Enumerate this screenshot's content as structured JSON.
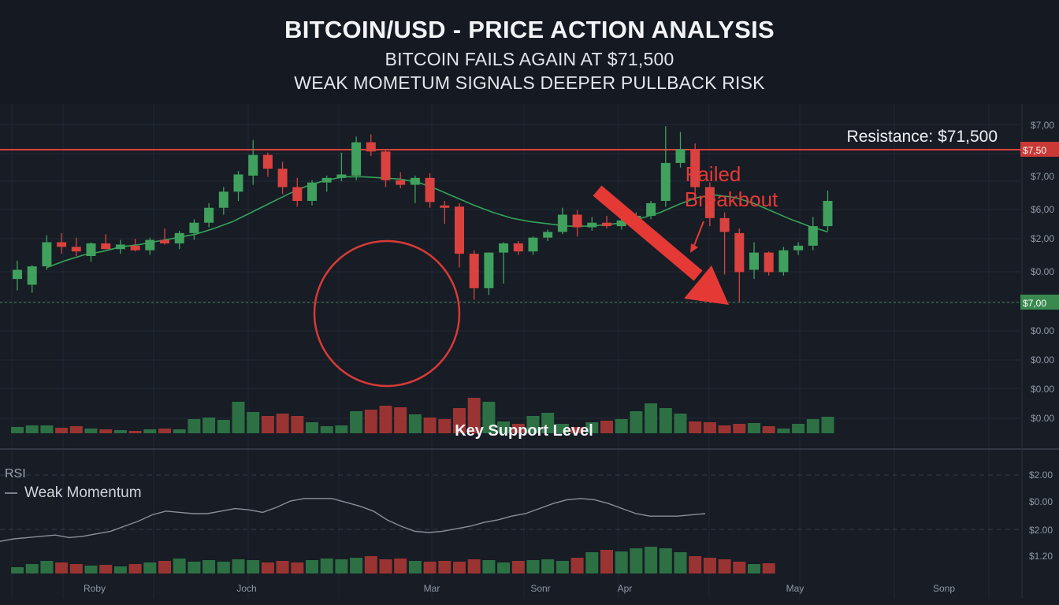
{
  "header": {
    "title": "BITCOIN/USD - PRICE ACTION ANALYSIS",
    "subtitle_1": "BITCOIN FAILS AGAIN AT $71,500",
    "subtitle_2": "WEAK MOMETUM SIGNALS DEEPER PULLBACK RISK"
  },
  "annotations": {
    "resistance": "Resistance: $71,500",
    "failed_breakout_1": "Failed",
    "failed_breakout_2": "Breakbout",
    "support": "Key Support Level",
    "rsi_label": "RSI",
    "rsi_legend": "Weak Momentum",
    "resistance_tag": "$7,50",
    "support_tag": "$7,00"
  },
  "colors": {
    "bull": "#3fa15d",
    "bear": "#d9423f",
    "resistance_line": "#d6423c",
    "ma_line": "#34a45a",
    "annotation_red": "#e53935",
    "support_tag_bg": "#3a8a50",
    "resistance_tag_bg": "#c93a36"
  },
  "chart_data": {
    "type": "candlestick",
    "price_axis_ticks": [
      "$7,00",
      "$7,00",
      "$6,00",
      "$2,00",
      "$0.00",
      "$0.00",
      "$0.00",
      "$0.00",
      "$0.00"
    ],
    "rsi_axis_ticks": [
      "$2.00",
      "$0.00",
      "$2.00",
      "$1.20"
    ],
    "x_labels": [
      "Roby",
      "Joch",
      "Mar",
      "Sonr",
      "Apr",
      "May",
      "Sonp"
    ],
    "resistance": 71.5,
    "support": 63.5,
    "price_range": [
      50,
      74
    ],
    "candles": [
      {
        "o": 60.0,
        "h": 61.6,
        "l": 59.0,
        "c": 60.8
      },
      {
        "o": 59.5,
        "h": 61.2,
        "l": 58.8,
        "c": 61.1
      },
      {
        "o": 61.1,
        "h": 63.8,
        "l": 60.8,
        "c": 63.2
      },
      {
        "o": 63.2,
        "h": 64.0,
        "l": 62.2,
        "c": 62.8
      },
      {
        "o": 62.8,
        "h": 63.6,
        "l": 62.0,
        "c": 62.4
      },
      {
        "o": 62.0,
        "h": 63.2,
        "l": 61.5,
        "c": 63.1
      },
      {
        "o": 63.1,
        "h": 63.9,
        "l": 62.6,
        "c": 62.6
      },
      {
        "o": 62.6,
        "h": 63.4,
        "l": 62.2,
        "c": 63.0
      },
      {
        "o": 62.9,
        "h": 63.5,
        "l": 62.4,
        "c": 62.5
      },
      {
        "o": 62.5,
        "h": 63.6,
        "l": 62.1,
        "c": 63.4
      },
      {
        "o": 63.4,
        "h": 64.4,
        "l": 63.0,
        "c": 63.1
      },
      {
        "o": 63.1,
        "h": 64.2,
        "l": 62.6,
        "c": 64.0
      },
      {
        "o": 64.0,
        "h": 65.2,
        "l": 63.4,
        "c": 64.9
      },
      {
        "o": 64.9,
        "h": 66.6,
        "l": 64.5,
        "c": 66.2
      },
      {
        "o": 66.2,
        "h": 68.0,
        "l": 65.6,
        "c": 67.6
      },
      {
        "o": 67.6,
        "h": 69.4,
        "l": 66.8,
        "c": 69.1
      },
      {
        "o": 69.0,
        "h": 72.1,
        "l": 68.2,
        "c": 70.8
      },
      {
        "o": 70.8,
        "h": 71.0,
        "l": 68.9,
        "c": 69.6
      },
      {
        "o": 69.6,
        "h": 70.2,
        "l": 67.4,
        "c": 68.0
      },
      {
        "o": 68.0,
        "h": 68.8,
        "l": 66.3,
        "c": 66.8
      },
      {
        "o": 66.8,
        "h": 68.6,
        "l": 66.4,
        "c": 68.4
      },
      {
        "o": 68.4,
        "h": 69.0,
        "l": 67.6,
        "c": 68.8
      },
      {
        "o": 68.8,
        "h": 71.0,
        "l": 68.5,
        "c": 69.1
      },
      {
        "o": 69.0,
        "h": 72.4,
        "l": 68.6,
        "c": 71.9
      },
      {
        "o": 71.9,
        "h": 72.6,
        "l": 70.7,
        "c": 71.1
      },
      {
        "o": 71.1,
        "h": 71.3,
        "l": 68.0,
        "c": 68.6
      },
      {
        "o": 68.6,
        "h": 69.3,
        "l": 67.9,
        "c": 68.2
      },
      {
        "o": 68.2,
        "h": 69.0,
        "l": 66.6,
        "c": 68.8
      },
      {
        "o": 68.8,
        "h": 69.2,
        "l": 66.2,
        "c": 66.7
      },
      {
        "o": 66.4,
        "h": 66.8,
        "l": 64.8,
        "c": 66.2
      },
      {
        "o": 66.3,
        "h": 66.6,
        "l": 61.0,
        "c": 62.2
      },
      {
        "o": 62.2,
        "h": 62.5,
        "l": 58.2,
        "c": 59.2
      },
      {
        "o": 59.2,
        "h": 62.3,
        "l": 58.6,
        "c": 62.3
      },
      {
        "o": 62.3,
        "h": 63.2,
        "l": 59.6,
        "c": 63.1
      },
      {
        "o": 63.1,
        "h": 63.3,
        "l": 62.1,
        "c": 62.4
      },
      {
        "o": 62.4,
        "h": 63.7,
        "l": 62.1,
        "c": 63.6
      },
      {
        "o": 63.6,
        "h": 64.3,
        "l": 63.3,
        "c": 64.1
      },
      {
        "o": 64.1,
        "h": 66.2,
        "l": 63.9,
        "c": 65.6
      },
      {
        "o": 65.6,
        "h": 66.0,
        "l": 63.7,
        "c": 64.5
      },
      {
        "o": 64.5,
        "h": 65.4,
        "l": 64.2,
        "c": 64.9
      },
      {
        "o": 64.9,
        "h": 65.5,
        "l": 64.4,
        "c": 64.6
      },
      {
        "o": 64.6,
        "h": 65.6,
        "l": 64.3,
        "c": 65.1
      },
      {
        "o": 65.1,
        "h": 65.8,
        "l": 64.8,
        "c": 65.5
      },
      {
        "o": 65.5,
        "h": 66.8,
        "l": 65.2,
        "c": 66.6
      },
      {
        "o": 66.8,
        "h": 73.3,
        "l": 66.3,
        "c": 70.1
      },
      {
        "o": 70.1,
        "h": 72.8,
        "l": 69.7,
        "c": 71.3
      },
      {
        "o": 71.3,
        "h": 71.8,
        "l": 66.8,
        "c": 68.0
      },
      {
        "o": 68.0,
        "h": 68.4,
        "l": 64.6,
        "c": 65.3
      },
      {
        "o": 65.3,
        "h": 65.8,
        "l": 60.4,
        "c": 64.1
      },
      {
        "o": 64.0,
        "h": 64.4,
        "l": 58.0,
        "c": 60.6
      },
      {
        "o": 60.8,
        "h": 63.2,
        "l": 60.0,
        "c": 62.3
      },
      {
        "o": 62.3,
        "h": 62.4,
        "l": 60.3,
        "c": 60.6
      },
      {
        "o": 60.6,
        "h": 62.8,
        "l": 60.3,
        "c": 62.5
      },
      {
        "o": 62.5,
        "h": 63.2,
        "l": 62.1,
        "c": 62.9
      },
      {
        "o": 62.9,
        "h": 65.4,
        "l": 62.5,
        "c": 64.6
      },
      {
        "o": 64.6,
        "h": 67.7,
        "l": 64.2,
        "c": 66.8
      }
    ],
    "moving_average": [
      61.0,
      61.6,
      62.1,
      62.4,
      62.8,
      63.0,
      63.3,
      63.6,
      63.9,
      64.4,
      65.0,
      65.8,
      66.6,
      67.4,
      68.1,
      68.6,
      68.9,
      68.9,
      68.8,
      68.7,
      68.4,
      67.8,
      67.1,
      66.4,
      65.8,
      65.3,
      65.0,
      64.8,
      64.6,
      64.6,
      64.7,
      64.9,
      65.3,
      65.8,
      66.5,
      67.1,
      67.3,
      67.1,
      66.6,
      65.9,
      65.2,
      64.6,
      64.1
    ],
    "ma_start_index": 2,
    "volume": [
      8,
      10,
      10,
      7,
      9,
      6,
      5,
      4,
      3,
      5,
      6,
      5,
      18,
      20,
      17,
      40,
      27,
      22,
      25,
      22,
      14,
      9,
      10,
      28,
      30,
      35,
      33,
      24,
      20,
      18,
      32,
      45,
      40,
      15,
      12,
      22,
      26,
      12,
      8,
      14,
      16,
      18,
      28,
      38,
      32,
      25,
      15,
      14,
      10,
      12,
      13,
      9,
      6,
      12,
      18,
      21
    ],
    "rsi_line": [
      58,
      60,
      61,
      62,
      63,
      61,
      62,
      64,
      66,
      70,
      74,
      79,
      82,
      81,
      80,
      80,
      82,
      84,
      83,
      81,
      85,
      90,
      92,
      92,
      92,
      89,
      86,
      82,
      75,
      70,
      66,
      65,
      66,
      68,
      70,
      73,
      75,
      78,
      80,
      84,
      88,
      91,
      92,
      91,
      88,
      84,
      80,
      78,
      78,
      78,
      79,
      80
    ],
    "rsi_bars": [
      8,
      12,
      16,
      14,
      12,
      10,
      11,
      9,
      12,
      14,
      16,
      19,
      15,
      17,
      15,
      18,
      17,
      14,
      16,
      14,
      17,
      19,
      18,
      20,
      22,
      18,
      19,
      16,
      15,
      16,
      15,
      18,
      17,
      14,
      16,
      17,
      18,
      16,
      20,
      27,
      30,
      28,
      32,
      34,
      32,
      27,
      22,
      20,
      18,
      15,
      12,
      13
    ]
  }
}
